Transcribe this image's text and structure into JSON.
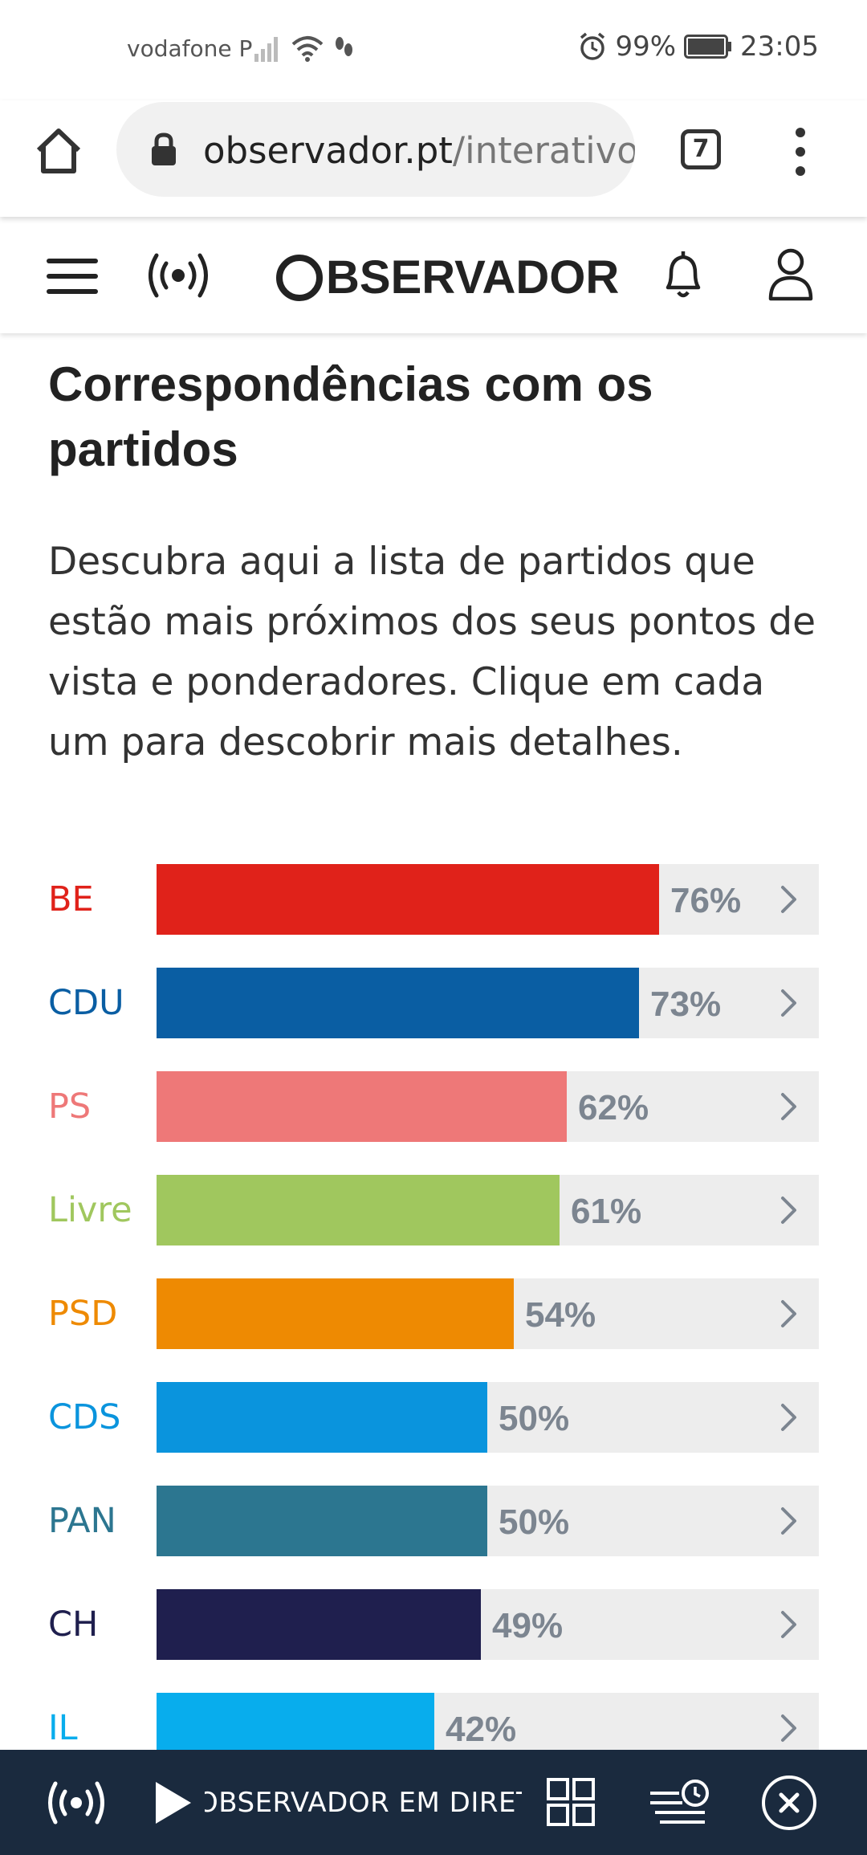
{
  "status_bar": {
    "carrier": "vodafone P",
    "battery": "99%",
    "time": "23:05"
  },
  "browser": {
    "url_host": "observador.pt",
    "url_path": "/interativo/",
    "tab_count": "7"
  },
  "site": {
    "logo_text": "BSERVADOR"
  },
  "content": {
    "title": "Correspondências com os partidos",
    "intro": "Descubra aqui a lista de partidos que estão mais próximos dos seus pontos de vista e ponderadores. Clique em cada um para descobrir mais detalhes."
  },
  "parties": [
    {
      "name": "BE",
      "percent": 76,
      "label": "76%",
      "color": "#e0221a"
    },
    {
      "name": "CDU",
      "percent": 73,
      "label": "73%",
      "color": "#0a5ea3"
    },
    {
      "name": "PS",
      "percent": 62,
      "label": "62%",
      "color": "#ee7878"
    },
    {
      "name": "Livre",
      "percent": 61,
      "label": "61%",
      "color": "#a0c75e"
    },
    {
      "name": "PSD",
      "percent": 54,
      "label": "54%",
      "color": "#ee8a02"
    },
    {
      "name": "CDS",
      "percent": 50,
      "label": "50%",
      "color": "#0a94dd"
    },
    {
      "name": "PAN",
      "percent": 50,
      "label": "50%",
      "color": "#2c7690"
    },
    {
      "name": "CH",
      "percent": 49,
      "label": "49%",
      "color": "#1f1f4e"
    },
    {
      "name": "IL",
      "percent": 42,
      "label": "42%",
      "color": "#08aded"
    }
  ],
  "bottom_bar": {
    "ticker": "OBSERVADOR EM DIRETO"
  },
  "colors": {
    "accent_dark": "#1a2a3e",
    "track": "#ededed",
    "percent_text": "#7c8590"
  }
}
